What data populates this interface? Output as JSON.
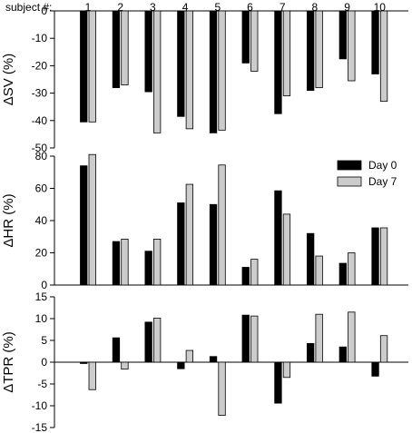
{
  "subject_header": "subject #:",
  "colors": {
    "day0": "#000000",
    "day7": "#cccccc",
    "axis": "#000000"
  },
  "chart_data": [
    {
      "type": "bar",
      "ylabel": "ΔSV (%)",
      "ylim": [
        -50,
        0
      ],
      "yticks": [
        0,
        -10,
        -20,
        -30,
        -40,
        -50
      ],
      "ytick_labels": [
        "0",
        "-10",
        "-20",
        "-30",
        "-40",
        "-50"
      ],
      "categories": [
        "1",
        "2",
        "3",
        "4",
        "5",
        "6",
        "7",
        "8",
        "9",
        "10"
      ],
      "series": [
        {
          "name": "Day 0",
          "values": [
            -40.5,
            -28,
            -29.5,
            -38.5,
            -44.5,
            -19,
            -37.5,
            -29,
            -17.5,
            -23
          ]
        },
        {
          "name": "Day 7",
          "values": [
            -40.5,
            -27,
            -44.5,
            -43,
            -43.5,
            -22,
            -31,
            -28,
            -25.5,
            -33
          ]
        }
      ]
    },
    {
      "type": "bar",
      "ylabel": "ΔHR (%)",
      "ylim": [
        0,
        80
      ],
      "yticks": [
        0,
        20,
        40,
        60,
        80
      ],
      "ytick_labels": [
        "0",
        "20",
        "40",
        "60",
        "80"
      ],
      "categories": [
        "1",
        "2",
        "3",
        "4",
        "5",
        "6",
        "7",
        "8",
        "9",
        "10"
      ],
      "legend": {
        "position": "top-right",
        "entries": [
          "Day 0",
          "Day 7"
        ]
      },
      "series": [
        {
          "name": "Day 0",
          "values": [
            74,
            27,
            21,
            51,
            50,
            11,
            58.5,
            32,
            13.5,
            35.5
          ]
        },
        {
          "name": "Day 7",
          "values": [
            81,
            28.5,
            28.5,
            62.5,
            74.5,
            16,
            44,
            18,
            20,
            35.5
          ]
        }
      ]
    },
    {
      "type": "bar",
      "ylabel": "ΔTPR (%)",
      "ylim": [
        -15,
        15
      ],
      "yticks": [
        15,
        10,
        5,
        0,
        -5,
        -10,
        -15
      ],
      "ytick_labels": [
        "15",
        "10",
        "5",
        "0",
        "-5",
        "-10",
        "-15"
      ],
      "categories": [
        "1",
        "2",
        "3",
        "4",
        "5",
        "6",
        "7",
        "8",
        "9",
        "10"
      ],
      "series": [
        {
          "name": "Day 0",
          "values": [
            -0.3,
            5.6,
            9.2,
            -1.5,
            1.3,
            10.8,
            -9.4,
            4.3,
            3.5,
            -3.2
          ]
        },
        {
          "name": "Day 7",
          "values": [
            -6.3,
            -1.6,
            10.1,
            2.7,
            -12.2,
            10.6,
            -3.5,
            11,
            11.5,
            6.1
          ]
        }
      ]
    }
  ]
}
